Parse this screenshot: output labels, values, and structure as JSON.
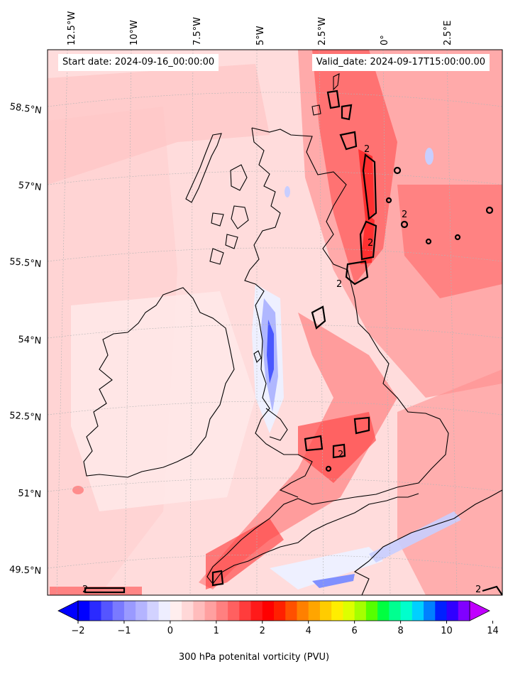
{
  "header": {
    "start_date": "Start date: 2024-09-16_00:00:00",
    "valid_date": "Valid_date: 2024-09-17T15:00:00.00"
  },
  "map": {
    "longitude_labels": [
      "12.5°W",
      "10°W",
      "7.5°W",
      "5°W",
      "2.5°W",
      "0°",
      "2.5°E"
    ],
    "latitude_labels": [
      "58.5°N",
      "57°N",
      "55.5°N",
      "54°N",
      "52.5°N",
      "51°N",
      "49.5°N"
    ],
    "contour_label": "2",
    "colors": {
      "background": "#ffd4d4",
      "coastline": "#000000",
      "gridline": "#b0b0b0"
    }
  },
  "colorbar": {
    "label": "300 hPa potenital vorticity (PVU)",
    "tick_labels": [
      "−2",
      "−1",
      "0",
      "1",
      "2",
      "4",
      "6",
      "8",
      "10",
      "14"
    ],
    "colors": [
      "#0000ff",
      "#2a2aff",
      "#5555ff",
      "#7a7aff",
      "#9a9aff",
      "#b4b4ff",
      "#d2d2ff",
      "#eeeeff",
      "#ffeeee",
      "#ffd8d8",
      "#ffbcbc",
      "#ffa0a0",
      "#ff8080",
      "#ff6060",
      "#ff3c3c",
      "#ff1a1a",
      "#ff0000",
      "#ff2000",
      "#ff5000",
      "#ff8000",
      "#ffa500",
      "#ffcc00",
      "#ffee00",
      "#ddff00",
      "#a5ff00",
      "#55ff00",
      "#00ff40",
      "#00ff90",
      "#00ffcc",
      "#00d0ff",
      "#0080ff",
      "#0020ff",
      "#3000ff",
      "#8000ff"
    ],
    "extend_low_color": "#0000ff",
    "extend_high_color": "#c000ff"
  }
}
